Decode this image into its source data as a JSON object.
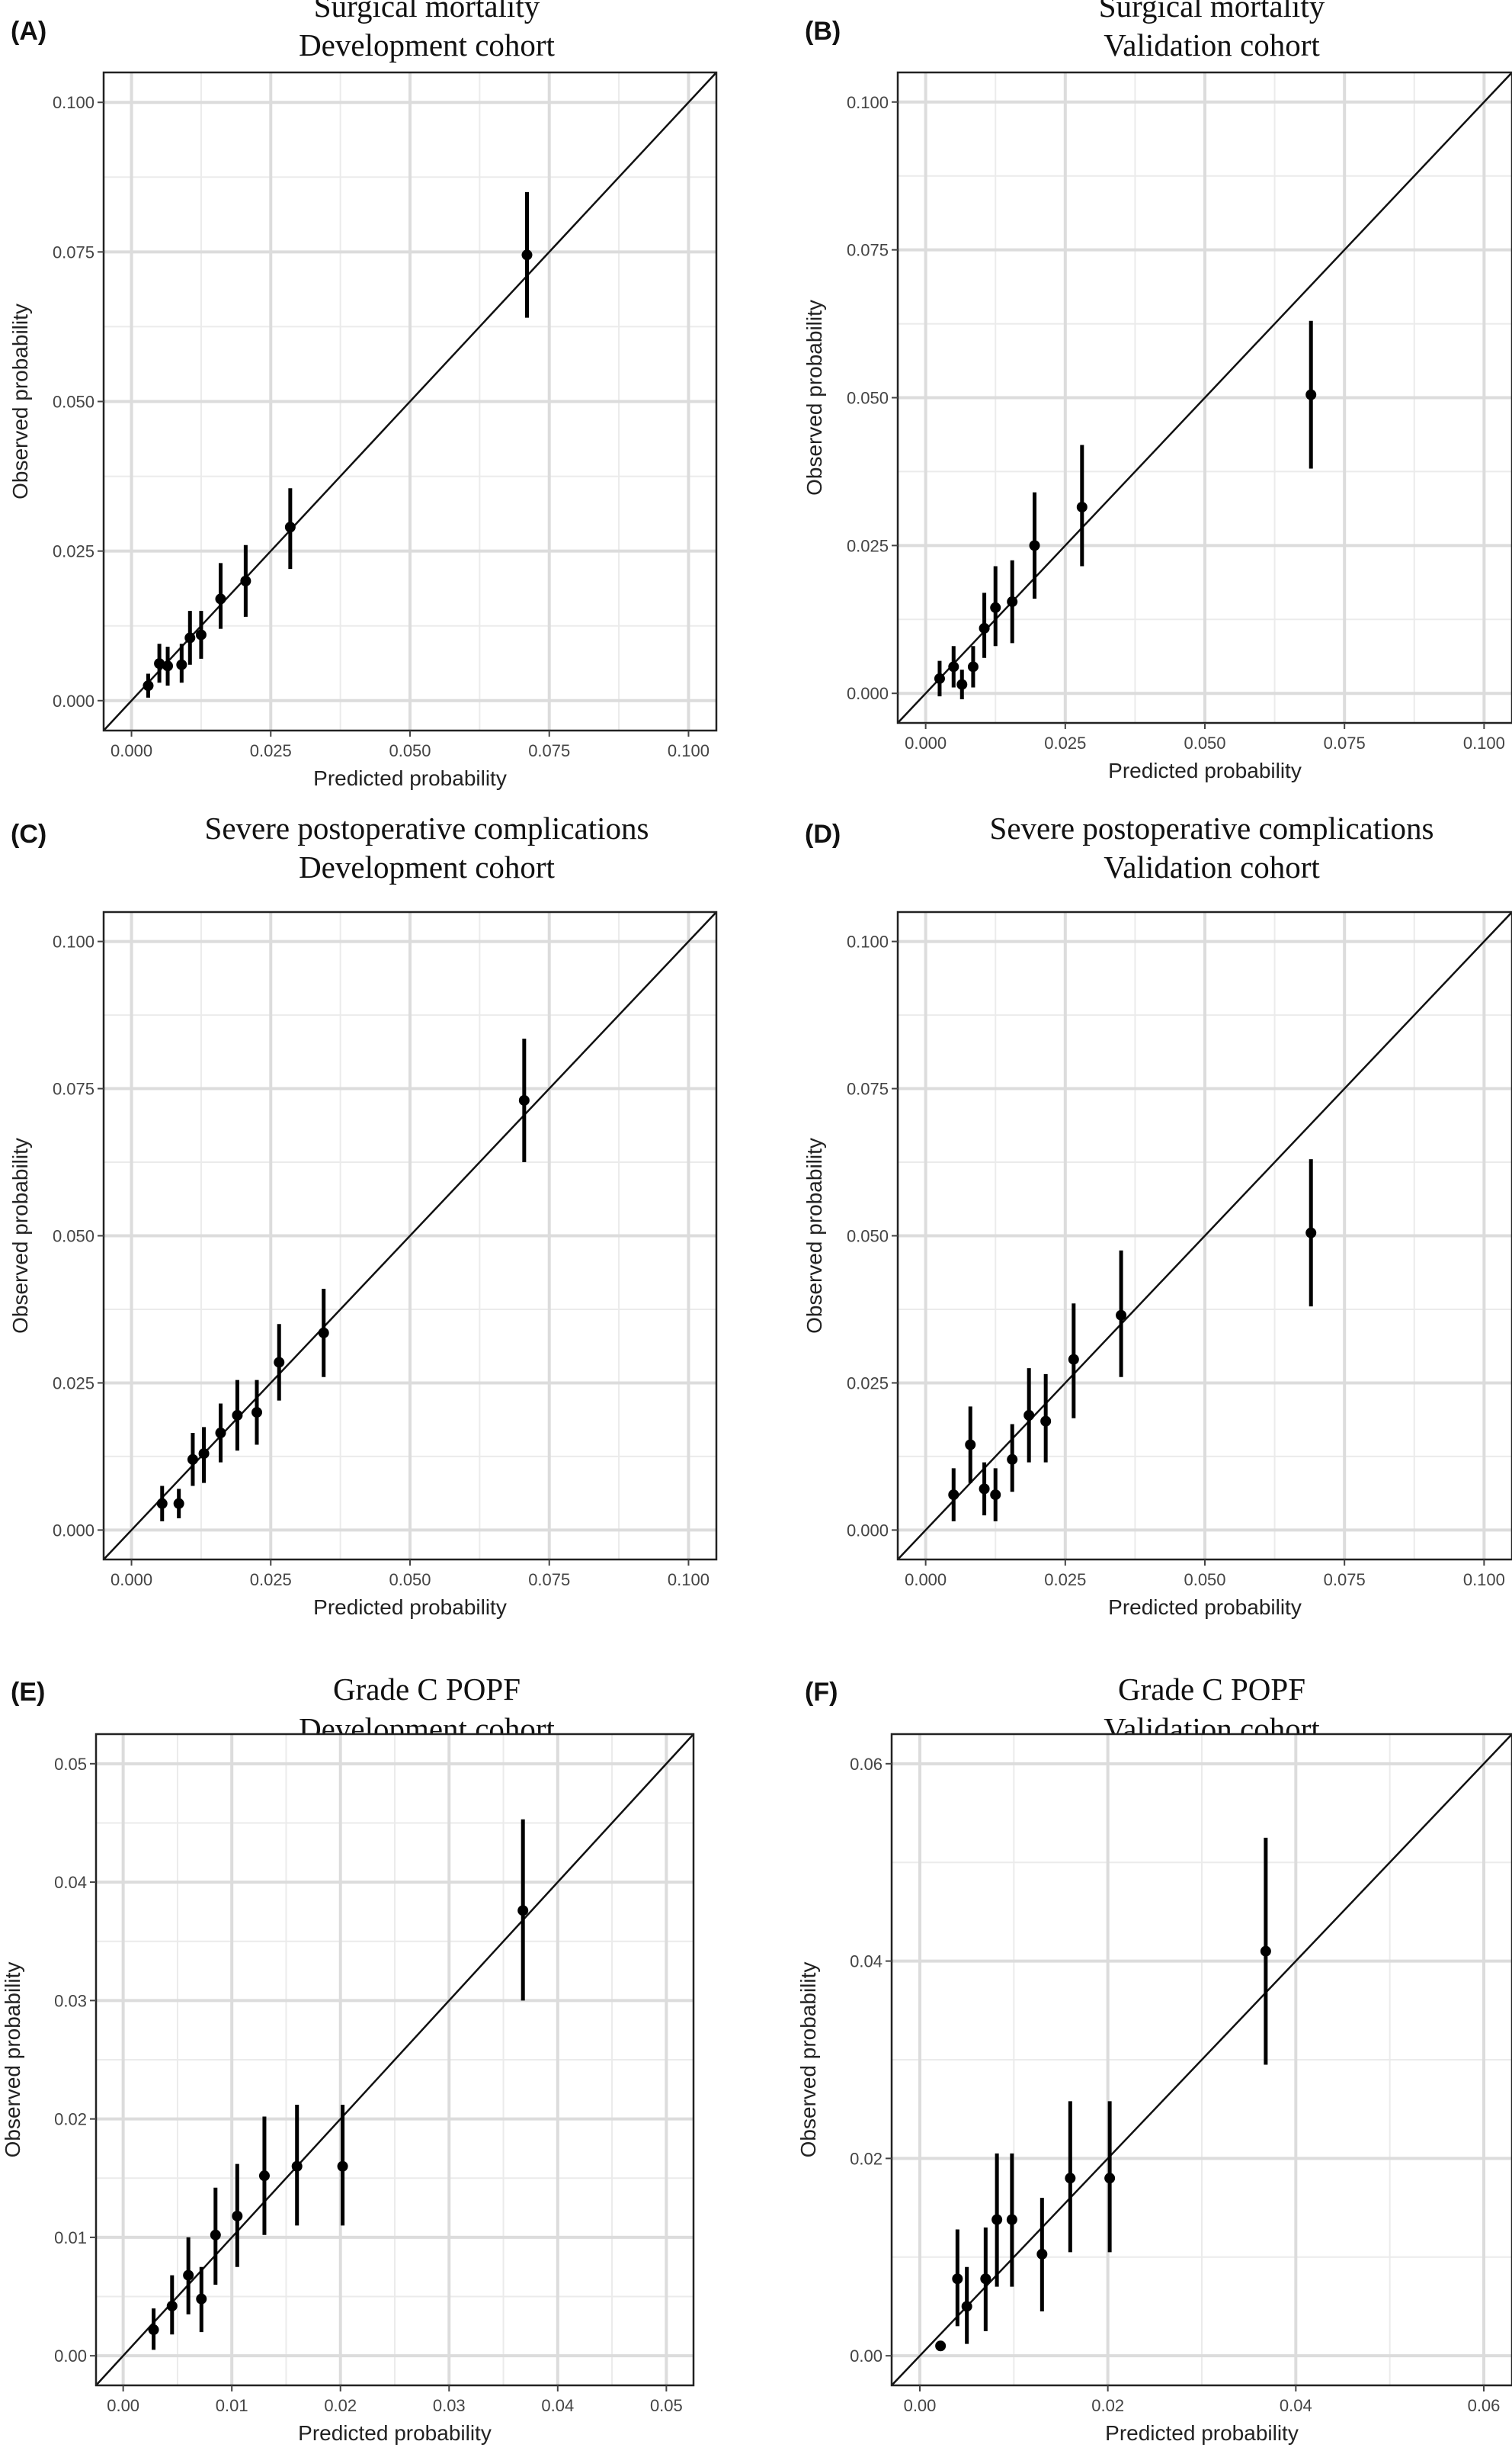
{
  "chart_data": [
    {
      "type": "scatter",
      "panel_label": "(A)",
      "title": "Surgical mortality",
      "subtitle": "Development cohort",
      "xlabel": "Predicted probability",
      "ylabel": "Observed probability",
      "xlim": [
        -0.005,
        0.105
      ],
      "ylim": [
        -0.005,
        0.105
      ],
      "ticks": [
        "0.000",
        "0.025",
        "0.050",
        "0.075",
        "0.100"
      ],
      "reference_line": "diagonal",
      "grid": true,
      "points": [
        {
          "x": 0.003,
          "y": 0.0025,
          "lo": 0.0005,
          "hi": 0.0045
        },
        {
          "x": 0.005,
          "y": 0.0062,
          "lo": 0.003,
          "hi": 0.0095
        },
        {
          "x": 0.0065,
          "y": 0.0058,
          "lo": 0.0025,
          "hi": 0.009
        },
        {
          "x": 0.009,
          "y": 0.006,
          "lo": 0.003,
          "hi": 0.0095
        },
        {
          "x": 0.0105,
          "y": 0.0105,
          "lo": 0.006,
          "hi": 0.015
        },
        {
          "x": 0.0125,
          "y": 0.011,
          "lo": 0.007,
          "hi": 0.015
        },
        {
          "x": 0.016,
          "y": 0.017,
          "lo": 0.012,
          "hi": 0.023
        },
        {
          "x": 0.0205,
          "y": 0.02,
          "lo": 0.014,
          "hi": 0.026
        },
        {
          "x": 0.0285,
          "y": 0.029,
          "lo": 0.022,
          "hi": 0.0355
        },
        {
          "x": 0.071,
          "y": 0.0745,
          "lo": 0.064,
          "hi": 0.085
        }
      ]
    },
    {
      "type": "scatter",
      "panel_label": "(B)",
      "title": "Surgical mortality",
      "subtitle": "Validation cohort",
      "xlabel": "Predicted probability",
      "ylabel": "Observed probability",
      "xlim": [
        -0.005,
        0.105
      ],
      "ylim": [
        -0.005,
        0.105
      ],
      "ticks": [
        "0.000",
        "0.025",
        "0.050",
        "0.075",
        "0.100"
      ],
      "reference_line": "diagonal",
      "grid": true,
      "points": [
        {
          "x": 0.0025,
          "y": 0.0025,
          "lo": -0.0005,
          "hi": 0.0055
        },
        {
          "x": 0.005,
          "y": 0.0045,
          "lo": 0.001,
          "hi": 0.008
        },
        {
          "x": 0.0065,
          "y": 0.0015,
          "lo": -0.001,
          "hi": 0.004
        },
        {
          "x": 0.0085,
          "y": 0.0045,
          "lo": 0.001,
          "hi": 0.008
        },
        {
          "x": 0.0105,
          "y": 0.011,
          "lo": 0.006,
          "hi": 0.017
        },
        {
          "x": 0.0125,
          "y": 0.0145,
          "lo": 0.008,
          "hi": 0.0215
        },
        {
          "x": 0.0155,
          "y": 0.0155,
          "lo": 0.0085,
          "hi": 0.0225
        },
        {
          "x": 0.0195,
          "y": 0.025,
          "lo": 0.016,
          "hi": 0.034
        },
        {
          "x": 0.028,
          "y": 0.0315,
          "lo": 0.0215,
          "hi": 0.042
        },
        {
          "x": 0.069,
          "y": 0.0505,
          "lo": 0.038,
          "hi": 0.063
        }
      ]
    },
    {
      "type": "scatter",
      "panel_label": "(C)",
      "title": "Severe postoperative complications",
      "subtitle": "Development cohort",
      "xlabel": "Predicted probability",
      "ylabel": "Observed probability",
      "xlim": [
        -0.005,
        0.105
      ],
      "ylim": [
        -0.005,
        0.105
      ],
      "ticks": [
        "0.000",
        "0.025",
        "0.050",
        "0.075",
        "0.100"
      ],
      "reference_line": "diagonal",
      "grid": true,
      "points": [
        {
          "x": 0.0055,
          "y": 0.0045,
          "lo": 0.0015,
          "hi": 0.0075
        },
        {
          "x": 0.0085,
          "y": 0.0045,
          "lo": 0.002,
          "hi": 0.007
        },
        {
          "x": 0.011,
          "y": 0.012,
          "lo": 0.0075,
          "hi": 0.0165
        },
        {
          "x": 0.013,
          "y": 0.013,
          "lo": 0.008,
          "hi": 0.0175
        },
        {
          "x": 0.016,
          "y": 0.0165,
          "lo": 0.0115,
          "hi": 0.0215
        },
        {
          "x": 0.019,
          "y": 0.0195,
          "lo": 0.0135,
          "hi": 0.0255
        },
        {
          "x": 0.0225,
          "y": 0.02,
          "lo": 0.0145,
          "hi": 0.0255
        },
        {
          "x": 0.0265,
          "y": 0.0285,
          "lo": 0.022,
          "hi": 0.035
        },
        {
          "x": 0.0345,
          "y": 0.0335,
          "lo": 0.026,
          "hi": 0.041
        },
        {
          "x": 0.0705,
          "y": 0.073,
          "lo": 0.0625,
          "hi": 0.0835
        }
      ]
    },
    {
      "type": "scatter",
      "panel_label": "(D)",
      "title": "Severe postoperative complications",
      "subtitle": "Validation cohort",
      "xlabel": "Predicted probability",
      "ylabel": "Observed probability",
      "xlim": [
        -0.005,
        0.105
      ],
      "ylim": [
        -0.005,
        0.105
      ],
      "ticks": [
        "0.000",
        "0.025",
        "0.050",
        "0.075",
        "0.100"
      ],
      "reference_line": "diagonal",
      "grid": true,
      "points": [
        {
          "x": 0.005,
          "y": 0.006,
          "lo": 0.0015,
          "hi": 0.0105
        },
        {
          "x": 0.008,
          "y": 0.0145,
          "lo": 0.008,
          "hi": 0.021
        },
        {
          "x": 0.0105,
          "y": 0.007,
          "lo": 0.0025,
          "hi": 0.0115
        },
        {
          "x": 0.0125,
          "y": 0.006,
          "lo": 0.0015,
          "hi": 0.0105
        },
        {
          "x": 0.0155,
          "y": 0.012,
          "lo": 0.0065,
          "hi": 0.018
        },
        {
          "x": 0.0185,
          "y": 0.0195,
          "lo": 0.0115,
          "hi": 0.0275
        },
        {
          "x": 0.0215,
          "y": 0.0185,
          "lo": 0.0115,
          "hi": 0.0265
        },
        {
          "x": 0.0265,
          "y": 0.029,
          "lo": 0.019,
          "hi": 0.0385
        },
        {
          "x": 0.035,
          "y": 0.0365,
          "lo": 0.026,
          "hi": 0.0475
        },
        {
          "x": 0.069,
          "y": 0.0505,
          "lo": 0.038,
          "hi": 0.063
        }
      ]
    },
    {
      "type": "scatter",
      "panel_label": "(E)",
      "title": "Grade C POPF",
      "subtitle": "Development cohort",
      "xlabel": "Predicted probability",
      "ylabel": "Observed probability",
      "xlim": [
        -0.0025,
        0.0525
      ],
      "ylim": [
        -0.0025,
        0.0525
      ],
      "ticks": [
        "0.00",
        "0.01",
        "0.02",
        "0.03",
        "0.04",
        "0.05"
      ],
      "reference_line": "diagonal",
      "grid": true,
      "points": [
        {
          "x": 0.0028,
          "y": 0.0022,
          "lo": 0.0005,
          "hi": 0.004
        },
        {
          "x": 0.0045,
          "y": 0.0042,
          "lo": 0.0018,
          "hi": 0.0068
        },
        {
          "x": 0.006,
          "y": 0.0068,
          "lo": 0.0035,
          "hi": 0.01
        },
        {
          "x": 0.0072,
          "y": 0.0048,
          "lo": 0.002,
          "hi": 0.0075
        },
        {
          "x": 0.0085,
          "y": 0.0102,
          "lo": 0.006,
          "hi": 0.0142
        },
        {
          "x": 0.0105,
          "y": 0.0118,
          "lo": 0.0075,
          "hi": 0.0162
        },
        {
          "x": 0.013,
          "y": 0.0152,
          "lo": 0.0102,
          "hi": 0.0202
        },
        {
          "x": 0.016,
          "y": 0.016,
          "lo": 0.011,
          "hi": 0.0212
        },
        {
          "x": 0.0202,
          "y": 0.016,
          "lo": 0.011,
          "hi": 0.0212
        },
        {
          "x": 0.0368,
          "y": 0.0376,
          "lo": 0.03,
          "hi": 0.0453
        }
      ]
    },
    {
      "type": "scatter",
      "panel_label": "(F)",
      "title": "Grade C POPF",
      "subtitle": "Validation cohort",
      "xlabel": "Predicted probability",
      "ylabel": "Observed probability",
      "xlim": [
        -0.003,
        0.063
      ],
      "ylim": [
        -0.003,
        0.063
      ],
      "ticks": [
        "0.00",
        "0.02",
        "0.04",
        "0.06"
      ],
      "reference_line": "diagonal",
      "grid": true,
      "points": [
        {
          "x": 0.0022,
          "y": 0.001,
          "lo": 0.0005,
          "hi": 0.0015
        },
        {
          "x": 0.004,
          "y": 0.0078,
          "lo": 0.003,
          "hi": 0.0128
        },
        {
          "x": 0.005,
          "y": 0.005,
          "lo": 0.0012,
          "hi": 0.009
        },
        {
          "x": 0.007,
          "y": 0.0078,
          "lo": 0.0025,
          "hi": 0.013
        },
        {
          "x": 0.0082,
          "y": 0.0138,
          "lo": 0.007,
          "hi": 0.0205
        },
        {
          "x": 0.0098,
          "y": 0.0138,
          "lo": 0.007,
          "hi": 0.0205
        },
        {
          "x": 0.013,
          "y": 0.0103,
          "lo": 0.0045,
          "hi": 0.016
        },
        {
          "x": 0.016,
          "y": 0.018,
          "lo": 0.0105,
          "hi": 0.0258
        },
        {
          "x": 0.0202,
          "y": 0.018,
          "lo": 0.0105,
          "hi": 0.0258
        },
        {
          "x": 0.0368,
          "y": 0.041,
          "lo": 0.0295,
          "hi": 0.0525
        }
      ]
    }
  ]
}
